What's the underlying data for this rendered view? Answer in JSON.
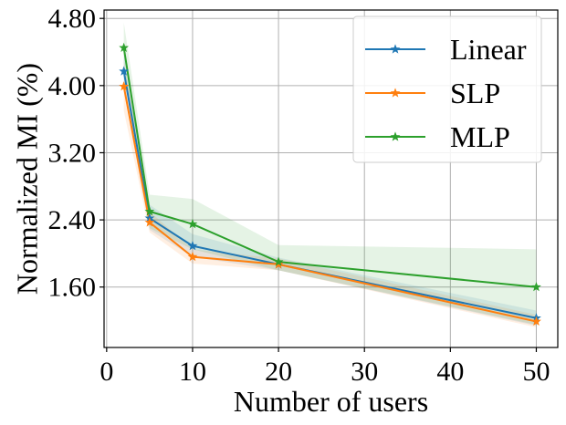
{
  "chart_data": {
    "type": "line",
    "title": "",
    "xlabel": "Number of users",
    "ylabel": "Normalized MI (%)",
    "xlim": [
      -0.3,
      52.5
    ],
    "ylim": [
      0.88,
      4.9
    ],
    "xticks": [
      0,
      10,
      20,
      30,
      40,
      50
    ],
    "yticks": [
      1.6,
      2.4,
      3.2,
      4.0,
      4.8
    ],
    "xtick_labels": [
      "0",
      "10",
      "20",
      "30",
      "40",
      "50"
    ],
    "ytick_labels": [
      "1.60",
      "2.40",
      "3.20",
      "4.00",
      "4.80"
    ],
    "grid": true,
    "legend_position": "top-right",
    "x": [
      2,
      5,
      10,
      20,
      50
    ],
    "series": [
      {
        "name": "Linear",
        "color": "#1f77b4",
        "marker": "star",
        "values": [
          4.17,
          2.42,
          2.09,
          1.87,
          1.23
        ],
        "lower": [
          3.95,
          2.28,
          1.96,
          1.8,
          1.14
        ],
        "upper": [
          4.4,
          2.58,
          2.23,
          1.95,
          1.32
        ]
      },
      {
        "name": "SLP",
        "color": "#ff7f0e",
        "marker": "star",
        "values": [
          3.99,
          2.37,
          1.96,
          1.87,
          1.19
        ],
        "lower": [
          3.7,
          2.25,
          1.88,
          1.8,
          1.12
        ],
        "upper": [
          4.3,
          2.5,
          2.05,
          1.94,
          1.27
        ]
      },
      {
        "name": "MLP",
        "color": "#2ca02c",
        "marker": "star",
        "values": [
          4.45,
          2.5,
          2.35,
          1.9,
          1.6
        ],
        "lower": [
          4.2,
          2.3,
          2.05,
          1.8,
          1.15
        ],
        "upper": [
          4.75,
          2.7,
          2.65,
          2.1,
          2.05
        ]
      }
    ]
  }
}
